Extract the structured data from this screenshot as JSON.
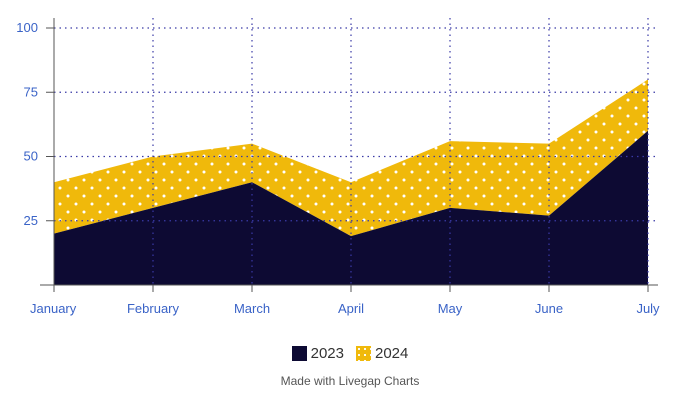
{
  "chart_data": {
    "type": "area",
    "stacked": true,
    "categories": [
      "January",
      "February",
      "March",
      "April",
      "May",
      "June",
      "July"
    ],
    "series": [
      {
        "name": "2023",
        "values": [
          20,
          30,
          40,
          19,
          30,
          27,
          60
        ],
        "color": "#0d0a33"
      },
      {
        "name": "2024",
        "values": [
          20,
          20,
          15,
          21,
          26,
          28,
          20
        ],
        "color": "#f0b90b",
        "pattern": "white-dots"
      }
    ],
    "yticks": [
      25,
      50,
      75,
      100
    ],
    "ylim": [
      0,
      105
    ],
    "grid": "dotted",
    "grid_color": "#3a3aa6",
    "tick_color": "#3a63c7",
    "legend_position": "bottom"
  },
  "legend": {
    "items": [
      {
        "label": "2023",
        "color": "#0d0a33"
      },
      {
        "label": "2024",
        "color": "#f0b90b"
      }
    ]
  },
  "credit": "Made with Livegap Charts"
}
